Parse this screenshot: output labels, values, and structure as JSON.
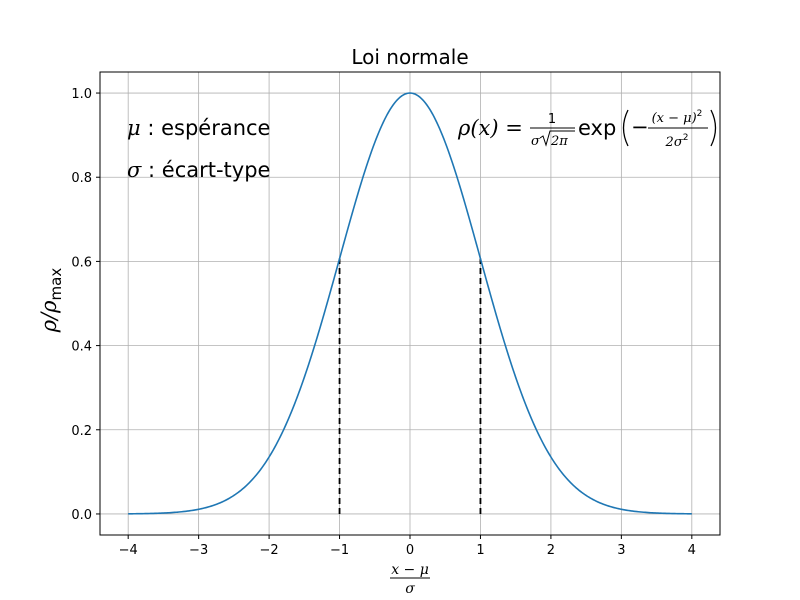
{
  "chart_data": {
    "type": "line",
    "title": "Loi normale",
    "xlabel_num": "x − μ",
    "xlabel_den": "σ",
    "ylabel": "ρ/ρ",
    "ylabel_sub": "max",
    "xlim": [
      -4.4,
      4.4
    ],
    "ylim": [
      -0.05,
      1.05
    ],
    "xticks": [
      -4,
      -3,
      -2,
      -1,
      0,
      1,
      2,
      3,
      4
    ],
    "xtick_labels": [
      "−4",
      "−3",
      "−2",
      "−1",
      "0",
      "1",
      "2",
      "3",
      "4"
    ],
    "yticks": [
      0.0,
      0.2,
      0.4,
      0.6,
      0.8,
      1.0
    ],
    "ytick_labels": [
      "0.0",
      "0.2",
      "0.4",
      "0.6",
      "0.8",
      "1.0"
    ],
    "grid": true,
    "series": [
      {
        "function": "exp(-x^2/2)",
        "x_range": [
          -4,
          4
        ],
        "color": "#1f77b4"
      }
    ],
    "vlines": [
      {
        "x": -1,
        "y": 0.6065,
        "color": "#000000",
        "style": "dashed"
      },
      {
        "x": 1,
        "y": 0.6065,
        "color": "#000000",
        "style": "dashed"
      }
    ],
    "annotations": {
      "mu_symbol": "μ",
      "mu_text": " : espérance",
      "sigma_symbol": "σ",
      "sigma_text": " : écart-type",
      "formula_lhs": "ρ(x) = ",
      "formula_frac_num": "1",
      "formula_frac_den_sigma": "σ",
      "formula_frac_den_sqrt": "2π",
      "formula_exp": "exp",
      "formula_inner_num": "(x − μ)",
      "formula_inner_num_sup": "2",
      "formula_inner_den": "2σ",
      "formula_inner_den_sup": "2"
    }
  }
}
